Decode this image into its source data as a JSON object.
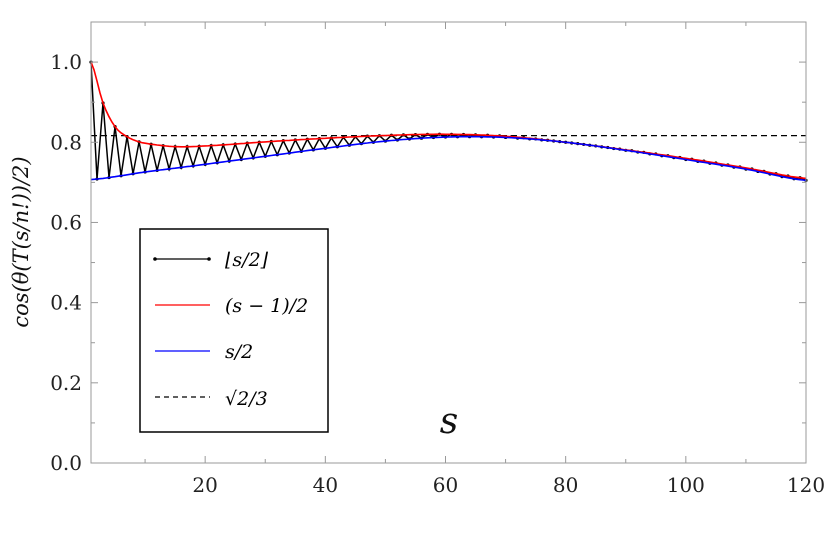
{
  "chart_data": {
    "type": "line",
    "xlabel": "s",
    "ylabel": "cos(θ(T(s/n!))/2)",
    "xlim": [
      1,
      120
    ],
    "ylim": [
      0,
      1.1
    ],
    "xticks": [
      20,
      40,
      60,
      80,
      100,
      120
    ],
    "xtick_labels": [
      "20",
      "40",
      "60",
      "80",
      "100",
      "120"
    ],
    "yticks": [
      0,
      0.2,
      0.4,
      0.6,
      0.8,
      1.0
    ],
    "ytick_labels": [
      "0.0",
      "0.2",
      "0.4",
      "0.6",
      "0.8",
      "1.0"
    ],
    "grid": false,
    "legend_placement": "lower-left",
    "series": [
      {
        "name": "⌊s/2⌋",
        "color": "#000000",
        "style": "solid-with-points",
        "rule": "alternates: odd s on (s−1)/2 curve, even s on s/2 curve"
      },
      {
        "name": "(s − 1)/2",
        "color": "#ff0000",
        "style": "solid",
        "x": [
          1,
          3,
          5,
          7,
          9,
          11,
          15,
          20,
          30,
          40,
          50,
          60,
          70,
          80,
          90,
          100,
          110,
          120
        ],
        "y": [
          1.0,
          0.898,
          0.839,
          0.814,
          0.801,
          0.795,
          0.789,
          0.791,
          0.801,
          0.81,
          0.817,
          0.82,
          0.815,
          0.8,
          0.781,
          0.76,
          0.736,
          0.71
        ]
      },
      {
        "name": "s/2",
        "color": "#0000ff",
        "style": "solid",
        "x": [
          1,
          10,
          20,
          30,
          40,
          50,
          60,
          70,
          80,
          90,
          100,
          110,
          120
        ],
        "y": [
          0.707,
          0.726,
          0.745,
          0.765,
          0.785,
          0.803,
          0.813,
          0.812,
          0.8,
          0.78,
          0.757,
          0.733,
          0.705
        ]
      },
      {
        "name": "√2/3",
        "color": "#000000",
        "style": "dashed",
        "y_const": 0.8165
      }
    ]
  }
}
